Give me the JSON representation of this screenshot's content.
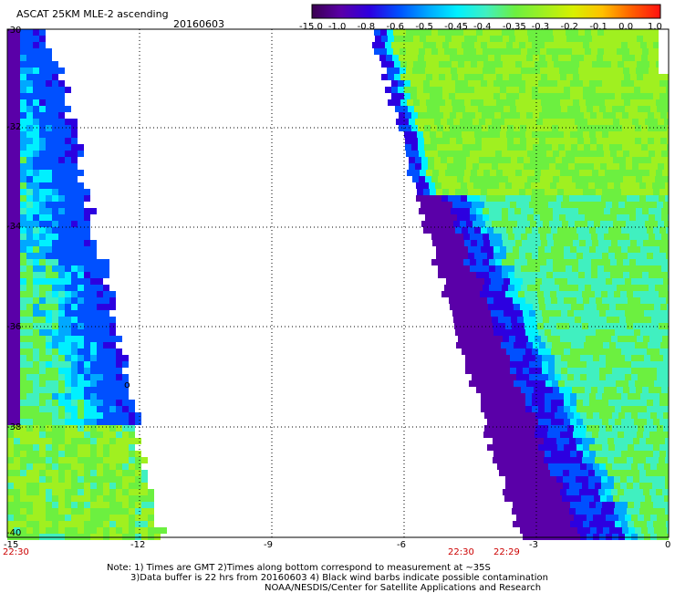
{
  "header": {
    "title": "ASCAT 25KM MLE-2 ascending",
    "date": "20160603"
  },
  "colorbar": {
    "labels": [
      "-15.0",
      "-1.0",
      "-0.8",
      "-0.6",
      "-0.5",
      "-0.45",
      "-0.4",
      "-0.35",
      "-0.3",
      "-0.2",
      "-0.1",
      "0.0",
      "1.0"
    ],
    "colors": [
      "#3a0050",
      "#5a00a8",
      "#2c00e0",
      "#0050ff",
      "#00a8ff",
      "#00f0ff",
      "#40f0c0",
      "#6cf040",
      "#a0f020",
      "#d8f000",
      "#ffc000",
      "#ff6000",
      "#ff1010"
    ]
  },
  "map": {
    "lon_labels": [
      "-15",
      "-12",
      "-9",
      "-6",
      "-3",
      "0"
    ],
    "lat_labels": [
      "-30",
      "-32",
      "-34",
      "-36",
      "-38",
      "-40"
    ],
    "lon_range": [
      -15,
      0
    ],
    "lat_range": [
      -40,
      -30
    ],
    "times": [
      "22:30",
      "22:30",
      "22:29"
    ],
    "time_color": "#cc0000",
    "flag_symbol": "o"
  },
  "footer": {
    "line1": "Note: 1) Times are GMT 2)Times along bottom correspond to measurement at ~35S",
    "line2": "3)Data buffer is 22 hrs from 20160603 4) Black wind barbs indicate possible contamination",
    "line3": "NOAA/NESDIS/Center for Satellite Applications and Research"
  }
}
